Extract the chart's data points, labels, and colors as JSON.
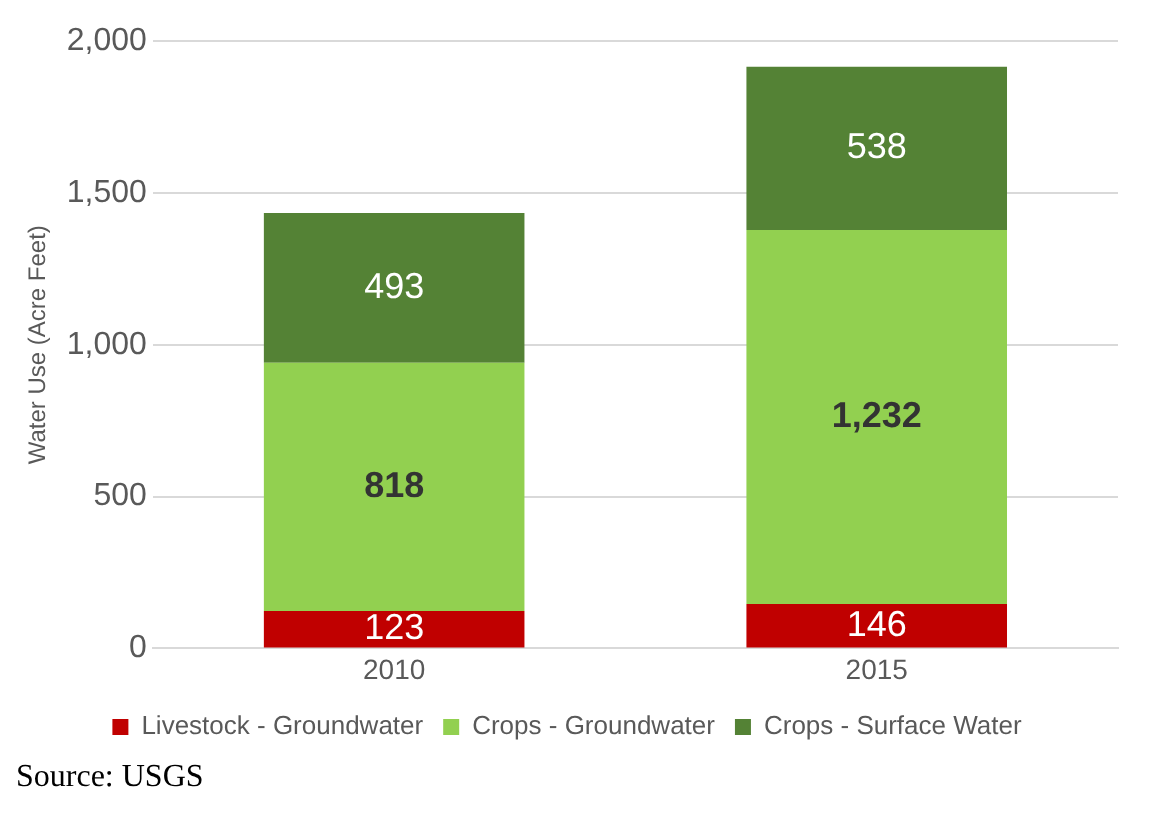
{
  "chart_data": {
    "type": "bar",
    "stacked": true,
    "categories": [
      "2010",
      "2015"
    ],
    "ylabel": "Water Use (Acre Feet)",
    "ylim": [
      0,
      2000
    ],
    "yticks": [
      0,
      500,
      {
        "value": 1000,
        "label": "1,000"
      },
      {
        "value": 1500,
        "label": "1,500"
      },
      {
        "value": 2000,
        "label": "2,000"
      }
    ],
    "grid": "y",
    "legend": "bottom",
    "annotations": [
      "Source: USGS"
    ],
    "series": [
      {
        "name": "Livestock - Groundwater",
        "color": "#c00000",
        "values": [
          123,
          146
        ],
        "value_labels": [
          "123",
          "146"
        ]
      },
      {
        "name": "Crops - Groundwater",
        "color": "#92d050",
        "values": [
          818,
          1232
        ],
        "value_labels": [
          "818",
          "1,232"
        ]
      },
      {
        "name": "Crops - Surface Water",
        "color": "#548235",
        "values": [
          493,
          538
        ],
        "value_labels": [
          "493",
          "538"
        ]
      }
    ]
  }
}
